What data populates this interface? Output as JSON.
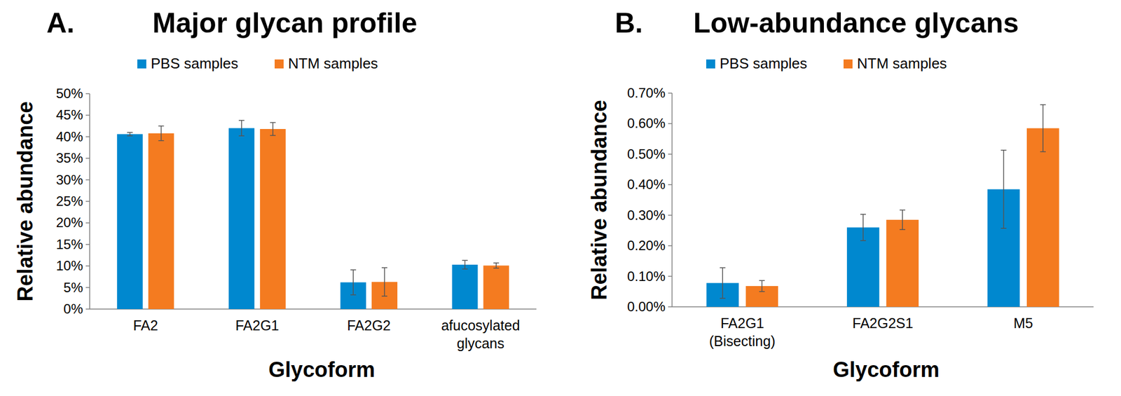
{
  "chart_data": [
    {
      "type": "bar",
      "label": "A.",
      "title": "Major glycan profile",
      "x_label": "Glycoform",
      "y_label": "Relative abundance",
      "categories": [
        "FA2",
        "FA2G1",
        "FA2G2",
        "afucosylated glycans"
      ],
      "series": [
        {
          "name": "PBS samples",
          "color": "#0088cf",
          "values": [
            40.6,
            42.0,
            6.2,
            10.3
          ],
          "errors": [
            0.4,
            1.8,
            2.9,
            1.0
          ]
        },
        {
          "name": "NTM samples",
          "color": "#f47b20",
          "values": [
            40.8,
            41.8,
            6.3,
            10.1
          ],
          "errors": [
            1.7,
            1.5,
            3.3,
            0.6
          ]
        }
      ],
      "ylim": [
        0,
        50
      ],
      "yticks": [
        {
          "value": 0,
          "label": "0%"
        },
        {
          "value": 5,
          "label": "5%"
        },
        {
          "value": 10,
          "label": "10%"
        },
        {
          "value": 15,
          "label": "15%"
        },
        {
          "value": 20,
          "label": "20%"
        },
        {
          "value": 25,
          "label": "25%"
        },
        {
          "value": 30,
          "label": "30%"
        },
        {
          "value": 35,
          "label": "35%"
        },
        {
          "value": 40,
          "label": "40%"
        },
        {
          "value": 45,
          "label": "45%"
        },
        {
          "value": 50,
          "label": "50%"
        }
      ],
      "grid": false,
      "legend": "top"
    },
    {
      "type": "bar",
      "label": "B.",
      "title": "Low-abundance glycans",
      "x_label": "Glycoform",
      "y_label": "Relative abundance",
      "categories": [
        "FA2G1 (Bisecting)",
        "FA2G2S1",
        "M5"
      ],
      "series": [
        {
          "name": "PBS samples",
          "color": "#0088cf",
          "values": [
            0.078,
            0.26,
            0.385
          ],
          "errors": [
            0.05,
            0.043,
            0.128
          ]
        },
        {
          "name": "NTM samples",
          "color": "#f47b20",
          "values": [
            0.068,
            0.285,
            0.585
          ],
          "errors": [
            0.018,
            0.032,
            0.077
          ]
        }
      ],
      "ylim": [
        0,
        0.7
      ],
      "yticks": [
        {
          "value": 0,
          "label": "0.00%"
        },
        {
          "value": 0.1,
          "label": "0.10%"
        },
        {
          "value": 0.2,
          "label": "0.20%"
        },
        {
          "value": 0.3,
          "label": "0.30%"
        },
        {
          "value": 0.4,
          "label": "0.40%"
        },
        {
          "value": 0.5,
          "label": "0.50%"
        },
        {
          "value": 0.6,
          "label": "0.60%"
        },
        {
          "value": 0.7,
          "label": "0.70%"
        }
      ],
      "grid": false,
      "legend": "top"
    }
  ]
}
